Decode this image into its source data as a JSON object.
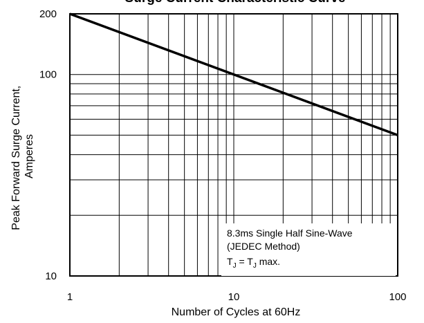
{
  "chart_data": {
    "type": "line",
    "title": "Surge Current Characteristic Curve",
    "xlabel": "Number of Cycles at 60Hz",
    "ylabel": "Peak Forward Surge Current, Amperes",
    "ylabel_lines": [
      "Peak Forward Surge Current,",
      "Amperes"
    ],
    "x_scale": "log",
    "y_scale": "log",
    "xlim": [
      1,
      100
    ],
    "ylim": [
      10,
      200
    ],
    "x_ticks": [
      1,
      10,
      100
    ],
    "x_tick_labels": [
      "1",
      "10",
      "100"
    ],
    "y_ticks": [
      10,
      100,
      200
    ],
    "y_tick_labels": [
      "10",
      "100",
      "200"
    ],
    "grid": true,
    "series": [
      {
        "x": [
          1,
          100
        ],
        "y": [
          200,
          50
        ]
      }
    ],
    "annotation": {
      "lines": [
        "8.3ms Single Half Sine-Wave",
        "(JEDEC Method)"
      ],
      "tj_prefix": "T",
      "tj_sub": "J",
      "tj_mid": " = T",
      "tj_suffix": " max."
    },
    "colors": {
      "line": "#000000",
      "grid": "#000000",
      "background": "#ffffff"
    }
  }
}
